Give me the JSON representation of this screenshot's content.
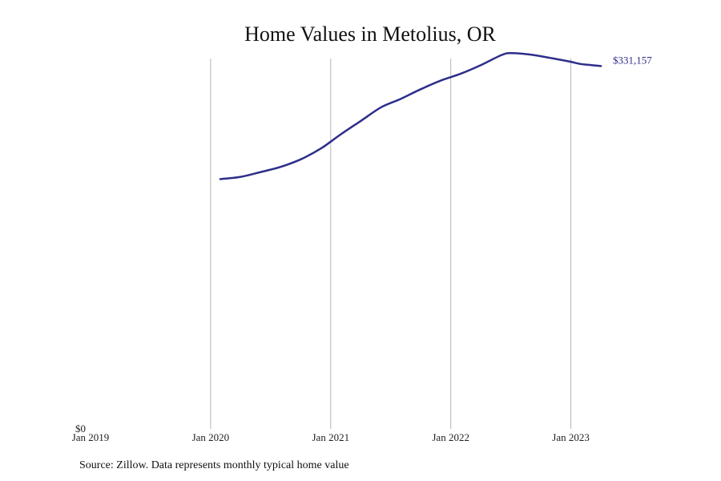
{
  "chart_data": {
    "type": "line",
    "title": "Home Values in Metolius, OR",
    "xlabel": "",
    "ylabel": "",
    "source": "Source: Zillow. Data represents monthly typical home value",
    "x_ticks": [
      {
        "label": "Jan 2019",
        "value": 2019.0
      },
      {
        "label": "Jan 2020",
        "value": 2020.0
      },
      {
        "label": "Jan 2021",
        "value": 2021.0
      },
      {
        "label": "Jan 2022",
        "value": 2022.0
      },
      {
        "label": "Jan 2023",
        "value": 2023.0
      }
    ],
    "y_ticks": [
      {
        "label": "$0",
        "value": 0
      }
    ],
    "xlim": [
      2019.0,
      2023.75
    ],
    "ylim": [
      0,
      338000
    ],
    "grid": {
      "vertical": true,
      "horizontal": false
    },
    "series": [
      {
        "color": "#2e2e8a",
        "end_label": "$331,157",
        "points": [
          {
            "x": 2020.08,
            "y": 228000
          },
          {
            "x": 2020.25,
            "y": 230000
          },
          {
            "x": 2020.42,
            "y": 234500
          },
          {
            "x": 2020.58,
            "y": 239000
          },
          {
            "x": 2020.75,
            "y": 246000
          },
          {
            "x": 2020.92,
            "y": 256000
          },
          {
            "x": 2021.08,
            "y": 268500
          },
          {
            "x": 2021.25,
            "y": 281000
          },
          {
            "x": 2021.42,
            "y": 293500
          },
          {
            "x": 2021.58,
            "y": 301000
          },
          {
            "x": 2021.75,
            "y": 310000
          },
          {
            "x": 2021.92,
            "y": 318000
          },
          {
            "x": 2022.08,
            "y": 324000
          },
          {
            "x": 2022.25,
            "y": 332000
          },
          {
            "x": 2022.42,
            "y": 341000
          },
          {
            "x": 2022.5,
            "y": 343000
          },
          {
            "x": 2022.67,
            "y": 341500
          },
          {
            "x": 2022.83,
            "y": 338500
          },
          {
            "x": 2023.0,
            "y": 335000
          },
          {
            "x": 2023.08,
            "y": 333000
          },
          {
            "x": 2023.17,
            "y": 332000
          },
          {
            "x": 2023.25,
            "y": 331157
          }
        ]
      }
    ]
  }
}
